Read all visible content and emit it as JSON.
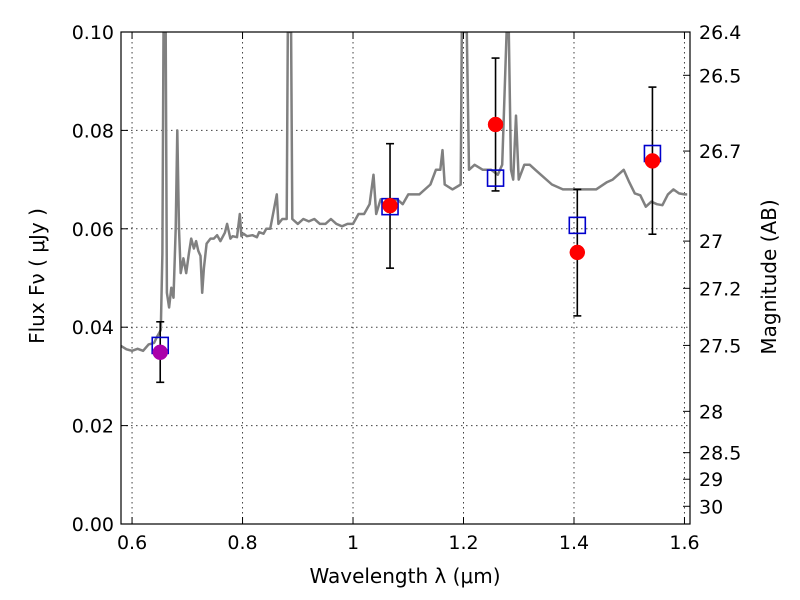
{
  "chart_data": {
    "type": "scatter",
    "xlabel": "Wavelength  λ (μm)",
    "ylabel": "Flux  Fν  ( μJy )",
    "y2label": "Magnitude (AB)",
    "xlim": [
      0.58,
      1.61
    ],
    "ylim": [
      0.0,
      0.1
    ],
    "x_ticks": [
      {
        "value": 0.6,
        "label": "0.6"
      },
      {
        "value": 0.8,
        "label": "0.8"
      },
      {
        "value": 1.0,
        "label": "1"
      },
      {
        "value": 1.2,
        "label": "1.2"
      },
      {
        "value": 1.4,
        "label": "1.4"
      },
      {
        "value": 1.6,
        "label": "1.6"
      }
    ],
    "y_ticks": [
      {
        "value": 0.0,
        "label": "0.00"
      },
      {
        "value": 0.02,
        "label": "0.02"
      },
      {
        "value": 0.04,
        "label": "0.04"
      },
      {
        "value": 0.06,
        "label": "0.06"
      },
      {
        "value": 0.08,
        "label": "0.08"
      },
      {
        "value": 0.1,
        "label": "0.10"
      }
    ],
    "y2_ticks": [
      {
        "flux": 0.1,
        "label": "26.4"
      },
      {
        "flux": 0.0912,
        "label": "26.5"
      },
      {
        "flux": 0.0758,
        "label": "26.7"
      },
      {
        "flux": 0.0575,
        "label": "27"
      },
      {
        "flux": 0.0479,
        "label": "27.2"
      },
      {
        "flux": 0.0363,
        "label": "27.5"
      },
      {
        "flux": 0.0229,
        "label": "28"
      },
      {
        "flux": 0.0145,
        "label": "28.5"
      },
      {
        "flux": 0.0091,
        "label": "29"
      },
      {
        "flux": 0.0036,
        "label": "30"
      }
    ],
    "grid": true,
    "colors": {
      "spectrum": "#808080",
      "model_box": "#0000cc",
      "observed": "#ff0000",
      "first_point": "#aa00aa",
      "errorbar": "#000000"
    },
    "model_points": [
      {
        "x": 0.651,
        "y": 0.0363
      },
      {
        "x": 1.067,
        "y": 0.0645
      },
      {
        "x": 1.258,
        "y": 0.0703
      },
      {
        "x": 1.406,
        "y": 0.0607
      },
      {
        "x": 1.542,
        "y": 0.0753
      }
    ],
    "observed_points": [
      {
        "x": 0.651,
        "y": 0.0349,
        "err_low": 0.0288,
        "err_high": 0.0411
      },
      {
        "x": 1.067,
        "y": 0.0647,
        "err_low": 0.052,
        "err_high": 0.0773
      },
      {
        "x": 1.258,
        "y": 0.0812,
        "err_low": 0.0677,
        "err_high": 0.0947
      },
      {
        "x": 1.406,
        "y": 0.0552,
        "err_low": 0.0423,
        "err_high": 0.068
      },
      {
        "x": 1.542,
        "y": 0.0738,
        "err_low": 0.0589,
        "err_high": 0.0888
      }
    ],
    "spectrum": [
      [
        0.58,
        0.0362
      ],
      [
        0.59,
        0.0355
      ],
      [
        0.6,
        0.0352
      ],
      [
        0.61,
        0.0356
      ],
      [
        0.62,
        0.0352
      ],
      [
        0.63,
        0.0365
      ],
      [
        0.64,
        0.0368
      ],
      [
        0.645,
        0.038
      ],
      [
        0.65,
        0.039
      ],
      [
        0.652,
        0.0395
      ],
      [
        0.655,
        0.055
      ],
      [
        0.657,
        0.1
      ],
      [
        0.659,
        0.1
      ],
      [
        0.661,
        0.1
      ],
      [
        0.663,
        0.047
      ],
      [
        0.667,
        0.044
      ],
      [
        0.671,
        0.048
      ],
      [
        0.675,
        0.046
      ],
      [
        0.679,
        0.06
      ],
      [
        0.682,
        0.08
      ],
      [
        0.685,
        0.06
      ],
      [
        0.688,
        0.051
      ],
      [
        0.693,
        0.054
      ],
      [
        0.698,
        0.051
      ],
      [
        0.703,
        0.055
      ],
      [
        0.707,
        0.058
      ],
      [
        0.712,
        0.056
      ],
      [
        0.716,
        0.0575
      ],
      [
        0.72,
        0.0555
      ],
      [
        0.724,
        0.0545
      ],
      [
        0.727,
        0.047
      ],
      [
        0.73,
        0.052
      ],
      [
        0.735,
        0.057
      ],
      [
        0.742,
        0.058
      ],
      [
        0.748,
        0.058
      ],
      [
        0.754,
        0.0587
      ],
      [
        0.76,
        0.0575
      ],
      [
        0.768,
        0.0592
      ],
      [
        0.772,
        0.061
      ],
      [
        0.778,
        0.058
      ],
      [
        0.782,
        0.0585
      ],
      [
        0.79,
        0.0583
      ],
      [
        0.795,
        0.063
      ],
      [
        0.798,
        0.0585
      ],
      [
        0.802,
        0.059
      ],
      [
        0.808,
        0.0585
      ],
      [
        0.818,
        0.0587
      ],
      [
        0.826,
        0.0583
      ],
      [
        0.83,
        0.0593
      ],
      [
        0.838,
        0.059
      ],
      [
        0.843,
        0.06
      ],
      [
        0.85,
        0.06
      ],
      [
        0.857,
        0.064
      ],
      [
        0.862,
        0.067
      ],
      [
        0.865,
        0.061
      ],
      [
        0.872,
        0.062
      ],
      [
        0.88,
        0.062
      ],
      [
        0.882,
        0.1
      ],
      [
        0.888,
        0.1
      ],
      [
        0.89,
        0.062
      ],
      [
        0.9,
        0.061
      ],
      [
        0.91,
        0.062
      ],
      [
        0.92,
        0.0615
      ],
      [
        0.93,
        0.062
      ],
      [
        0.94,
        0.061
      ],
      [
        0.95,
        0.061
      ],
      [
        0.96,
        0.062
      ],
      [
        0.97,
        0.061
      ],
      [
        0.98,
        0.0605
      ],
      [
        0.99,
        0.061
      ],
      [
        1.0,
        0.061
      ],
      [
        1.01,
        0.063
      ],
      [
        1.02,
        0.063
      ],
      [
        1.03,
        0.065
      ],
      [
        1.037,
        0.071
      ],
      [
        1.042,
        0.063
      ],
      [
        1.05,
        0.066
      ],
      [
        1.06,
        0.064
      ],
      [
        1.08,
        0.066
      ],
      [
        1.09,
        0.065
      ],
      [
        1.1,
        0.067
      ],
      [
        1.12,
        0.067
      ],
      [
        1.14,
        0.069
      ],
      [
        1.15,
        0.072
      ],
      [
        1.158,
        0.072
      ],
      [
        1.162,
        0.076
      ],
      [
        1.166,
        0.069
      ],
      [
        1.18,
        0.068
      ],
      [
        1.195,
        0.069
      ],
      [
        1.197,
        0.1
      ],
      [
        1.2,
        0.1
      ],
      [
        1.202,
        0.1
      ],
      [
        1.206,
        0.1
      ],
      [
        1.21,
        0.072
      ],
      [
        1.22,
        0.073
      ],
      [
        1.235,
        0.072
      ],
      [
        1.25,
        0.072
      ],
      [
        1.262,
        0.071
      ],
      [
        1.27,
        0.073
      ],
      [
        1.278,
        0.1
      ],
      [
        1.282,
        0.1
      ],
      [
        1.286,
        0.072
      ],
      [
        1.29,
        0.07
      ],
      [
        1.295,
        0.083
      ],
      [
        1.3,
        0.07
      ],
      [
        1.31,
        0.073
      ],
      [
        1.32,
        0.073
      ],
      [
        1.33,
        0.072
      ],
      [
        1.34,
        0.071
      ],
      [
        1.36,
        0.069
      ],
      [
        1.38,
        0.068
      ],
      [
        1.4,
        0.068
      ],
      [
        1.42,
        0.068
      ],
      [
        1.44,
        0.068
      ],
      [
        1.46,
        0.0695
      ],
      [
        1.47,
        0.07
      ],
      [
        1.48,
        0.071
      ],
      [
        1.49,
        0.072
      ],
      [
        1.5,
        0.0695
      ],
      [
        1.51,
        0.0672
      ],
      [
        1.52,
        0.0668
      ],
      [
        1.53,
        0.0645
      ],
      [
        1.54,
        0.0655
      ],
      [
        1.55,
        0.065
      ],
      [
        1.56,
        0.0648
      ],
      [
        1.57,
        0.067
      ],
      [
        1.58,
        0.068
      ],
      [
        1.59,
        0.0672
      ],
      [
        1.6,
        0.067
      ],
      [
        1.605,
        0.067
      ]
    ]
  }
}
